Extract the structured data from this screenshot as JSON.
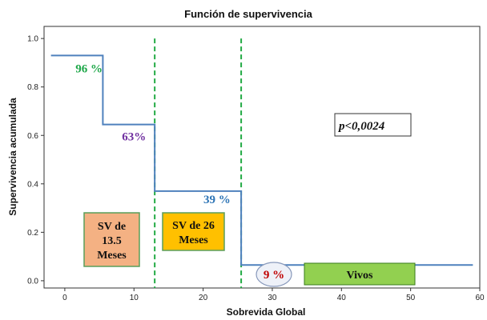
{
  "chart_data": {
    "type": "line",
    "title": "Función de supervivencia",
    "xlabel": "Sobrevida Global",
    "ylabel": "Supervivencia acumulada",
    "xlim": [
      -3,
      60
    ],
    "ylim": [
      -0.03,
      1.05
    ],
    "xticks": [
      0,
      10,
      20,
      30,
      40,
      50,
      60
    ],
    "yticks": [
      0.0,
      0.2,
      0.4,
      0.6,
      0.8,
      1.0
    ],
    "xtick_labels": [
      "0",
      "10",
      "20",
      "30",
      "40",
      "50",
      "60"
    ],
    "ytick_labels": [
      "0.0",
      "0.2",
      "0.4",
      "0.6",
      "0.8",
      "1.0"
    ],
    "grid": false,
    "series": [
      {
        "step": "post",
        "color": "#4f81bd",
        "points": [
          {
            "x": -2,
            "y": 0.93
          },
          {
            "x": 5.5,
            "y": 0.645
          },
          {
            "x": 13,
            "y": 0.37
          },
          {
            "x": 25.5,
            "y": 0.065
          },
          {
            "x": 59,
            "y": 0.065
          }
        ]
      }
    ],
    "reference_lines": [
      {
        "x": 13,
        "color": "#22aa44",
        "style": "dashed"
      },
      {
        "x": 25.5,
        "color": "#22aa44",
        "style": "dashed"
      }
    ],
    "annotations": [
      {
        "text": "96 %",
        "x": 3.5,
        "y": 0.86,
        "color": "#1fa84a"
      },
      {
        "text": "63%",
        "x": 10,
        "y": 0.58,
        "color": "#7030a0"
      },
      {
        "text": "39 %",
        "x": 22,
        "y": 0.32,
        "color": "#2e75b6"
      }
    ],
    "pvalue": "p<0,0024",
    "circle_label": {
      "text": "9 %",
      "color": "#c00000"
    },
    "boxes": [
      {
        "text": "SV de 13.5 Meses",
        "lines": [
          "SV de",
          "13.5",
          "Meses"
        ],
        "fill": "#f4b183",
        "border": "#5a9e5a"
      },
      {
        "text": "SV de 26 Meses",
        "lines": [
          "SV de 26",
          "Meses"
        ],
        "fill": "#ffc000",
        "border": "#5a9e5a"
      },
      {
        "text": "Vivos",
        "lines": [
          "Vivos"
        ],
        "fill": "#92d050",
        "border": "#3a7d1e"
      }
    ]
  }
}
